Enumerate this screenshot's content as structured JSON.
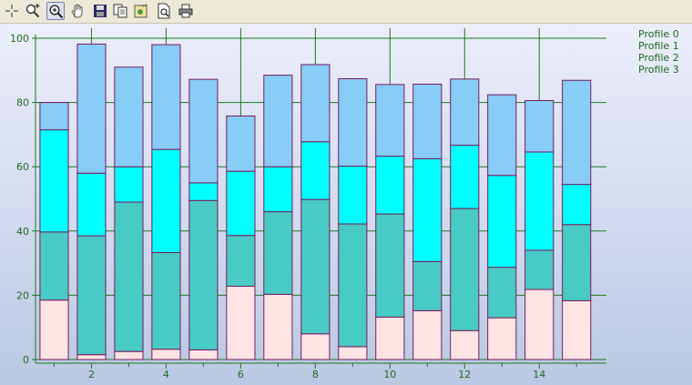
{
  "toolbar": {
    "buttons": [
      {
        "icon": "crosshair-icon",
        "active": false
      },
      {
        "icon": "zoom-in-plus-icon",
        "active": false
      },
      {
        "icon": "zoom-icon",
        "active": true
      },
      {
        "icon": "pan-hand-icon",
        "active": false
      },
      {
        "icon": "save-icon",
        "active": false
      },
      {
        "icon": "copy-icon",
        "active": false
      },
      {
        "icon": "properties-icon",
        "active": false
      },
      {
        "icon": "print-preview-icon",
        "active": false
      },
      {
        "icon": "print-icon",
        "active": false
      }
    ]
  },
  "colors": {
    "series": [
      "#ffe4e4",
      "#48cbc5",
      "#00ffff",
      "#88ccf8"
    ],
    "bar_outline": "#7a1a5a",
    "grid": "#1c7a1c",
    "text": "#1c6b1c"
  },
  "chart_data": {
    "type": "bar",
    "stacked": true,
    "x": [
      1,
      2,
      3,
      4,
      5,
      6,
      7,
      8,
      9,
      10,
      11,
      12,
      13,
      14,
      15
    ],
    "xlim": [
      0.5,
      15.8
    ],
    "ylim": [
      0,
      100
    ],
    "x_ticks": [
      2,
      4,
      6,
      8,
      10,
      12,
      14
    ],
    "y_ticks": [
      0,
      20,
      40,
      60,
      80,
      100
    ],
    "grid": true,
    "legend_position": "top-right",
    "series": [
      {
        "name": "Profile 0",
        "values": [
          18.5,
          1.5,
          2.5,
          3.2,
          3.0,
          22.8,
          20.3,
          8.0,
          4.0,
          13.2,
          15.2,
          9.0,
          13.0,
          21.8,
          18.3
        ]
      },
      {
        "name": "Profile 1",
        "values": [
          21.2,
          37.0,
          46.5,
          30.1,
          46.5,
          15.8,
          25.7,
          41.8,
          38.2,
          32.1,
          15.3,
          38.0,
          15.7,
          12.2,
          23.7
        ]
      },
      {
        "name": "Profile 2",
        "values": [
          31.8,
          19.5,
          11.0,
          32.1,
          5.5,
          20.0,
          14.0,
          18.0,
          18.0,
          18.0,
          32.0,
          19.7,
          28.6,
          30.6,
          12.5
        ]
      },
      {
        "name": "Profile 3",
        "values": [
          8.5,
          40.2,
          31.0,
          32.6,
          32.2,
          17.2,
          28.5,
          24.0,
          27.2,
          22.3,
          23.2,
          20.6,
          25.1,
          16.0,
          32.4
        ]
      }
    ]
  }
}
